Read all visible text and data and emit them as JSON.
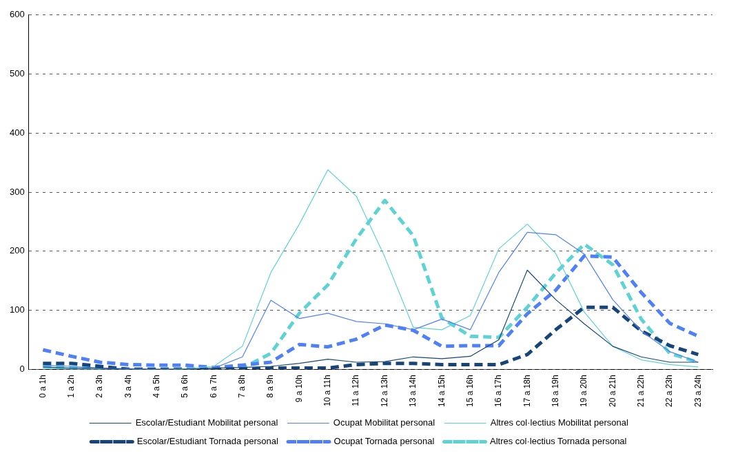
{
  "chart_data": {
    "type": "line",
    "categories": [
      "0 a 1h",
      "1 a 2h",
      "2 a 3h",
      "3 a 4h",
      "4 a 5h",
      "5 a 6h",
      "6 a 7h",
      "7 a 8h",
      "8 a 9h",
      "9 a 10h",
      "10 a 11h",
      "11 a 12h",
      "12 a 13h",
      "13 a 14h",
      "14 a 15h",
      "15 a 16h",
      "16 a 17h",
      "17 a 18h",
      "18 a 19h",
      "19 a 20h",
      "20 a 21h",
      "21 a 22h",
      "22 a 23h",
      "23 a 24h"
    ],
    "series": [
      {
        "name": "Escolar/Estudiant Mobilitat personal",
        "color": "#17457a",
        "line_style": "solid",
        "values": [
          4,
          2,
          2,
          0,
          0,
          0,
          2,
          3,
          5,
          10,
          17,
          12,
          13,
          21,
          18,
          22,
          50,
          168,
          118,
          77,
          39,
          21,
          12,
          12
        ]
      },
      {
        "name": "Escolar/Estudiant Tornada personal",
        "color": "#17457a",
        "line_style": "dashed",
        "values": [
          10,
          10,
          5,
          0,
          0,
          0,
          0,
          0,
          2,
          2,
          2,
          8,
          10,
          10,
          8,
          8,
          8,
          25,
          67,
          105,
          105,
          65,
          40,
          25
        ]
      },
      {
        "name": "Ocupat Mobilitat personal",
        "color": "#5080f8",
        "line_style": "solid",
        "values": [
          7,
          5,
          2,
          1,
          0,
          0,
          2,
          21,
          117,
          86,
          95,
          81,
          77,
          67,
          85,
          67,
          164,
          232,
          228,
          195,
          118,
          65,
          30,
          12
        ]
      },
      {
        "name": "Ocupat Tornada personal",
        "color": "#5080f8",
        "line_style": "dashed",
        "values": [
          33,
          22,
          12,
          8,
          7,
          7,
          3,
          7,
          12,
          42,
          38,
          51,
          75,
          66,
          39,
          40,
          40,
          94,
          134,
          192,
          190,
          130,
          78,
          56
        ]
      },
      {
        "name": "Altres col·lectius Mobilitat personal",
        "color": "#5fd3d3",
        "line_style": "solid",
        "values": [
          2,
          0,
          0,
          0,
          0,
          1,
          5,
          39,
          164,
          246,
          338,
          293,
          190,
          71,
          67,
          91,
          204,
          246,
          196,
          97,
          39,
          16,
          8,
          4
        ]
      },
      {
        "name": "Altres col·lectius Tornada personal",
        "color": "#5fd3d3",
        "line_style": "dashed",
        "values": [
          5,
          3,
          2,
          0,
          0,
          0,
          0,
          2,
          27,
          95,
          143,
          221,
          286,
          226,
          87,
          56,
          54,
          105,
          163,
          212,
          177,
          85,
          27,
          12
        ]
      }
    ],
    "ylim": [
      0,
      600
    ],
    "yticks": [
      0,
      100,
      200,
      300,
      400,
      500,
      600
    ],
    "grid": "y",
    "legend": "bottom",
    "marker": "none"
  }
}
